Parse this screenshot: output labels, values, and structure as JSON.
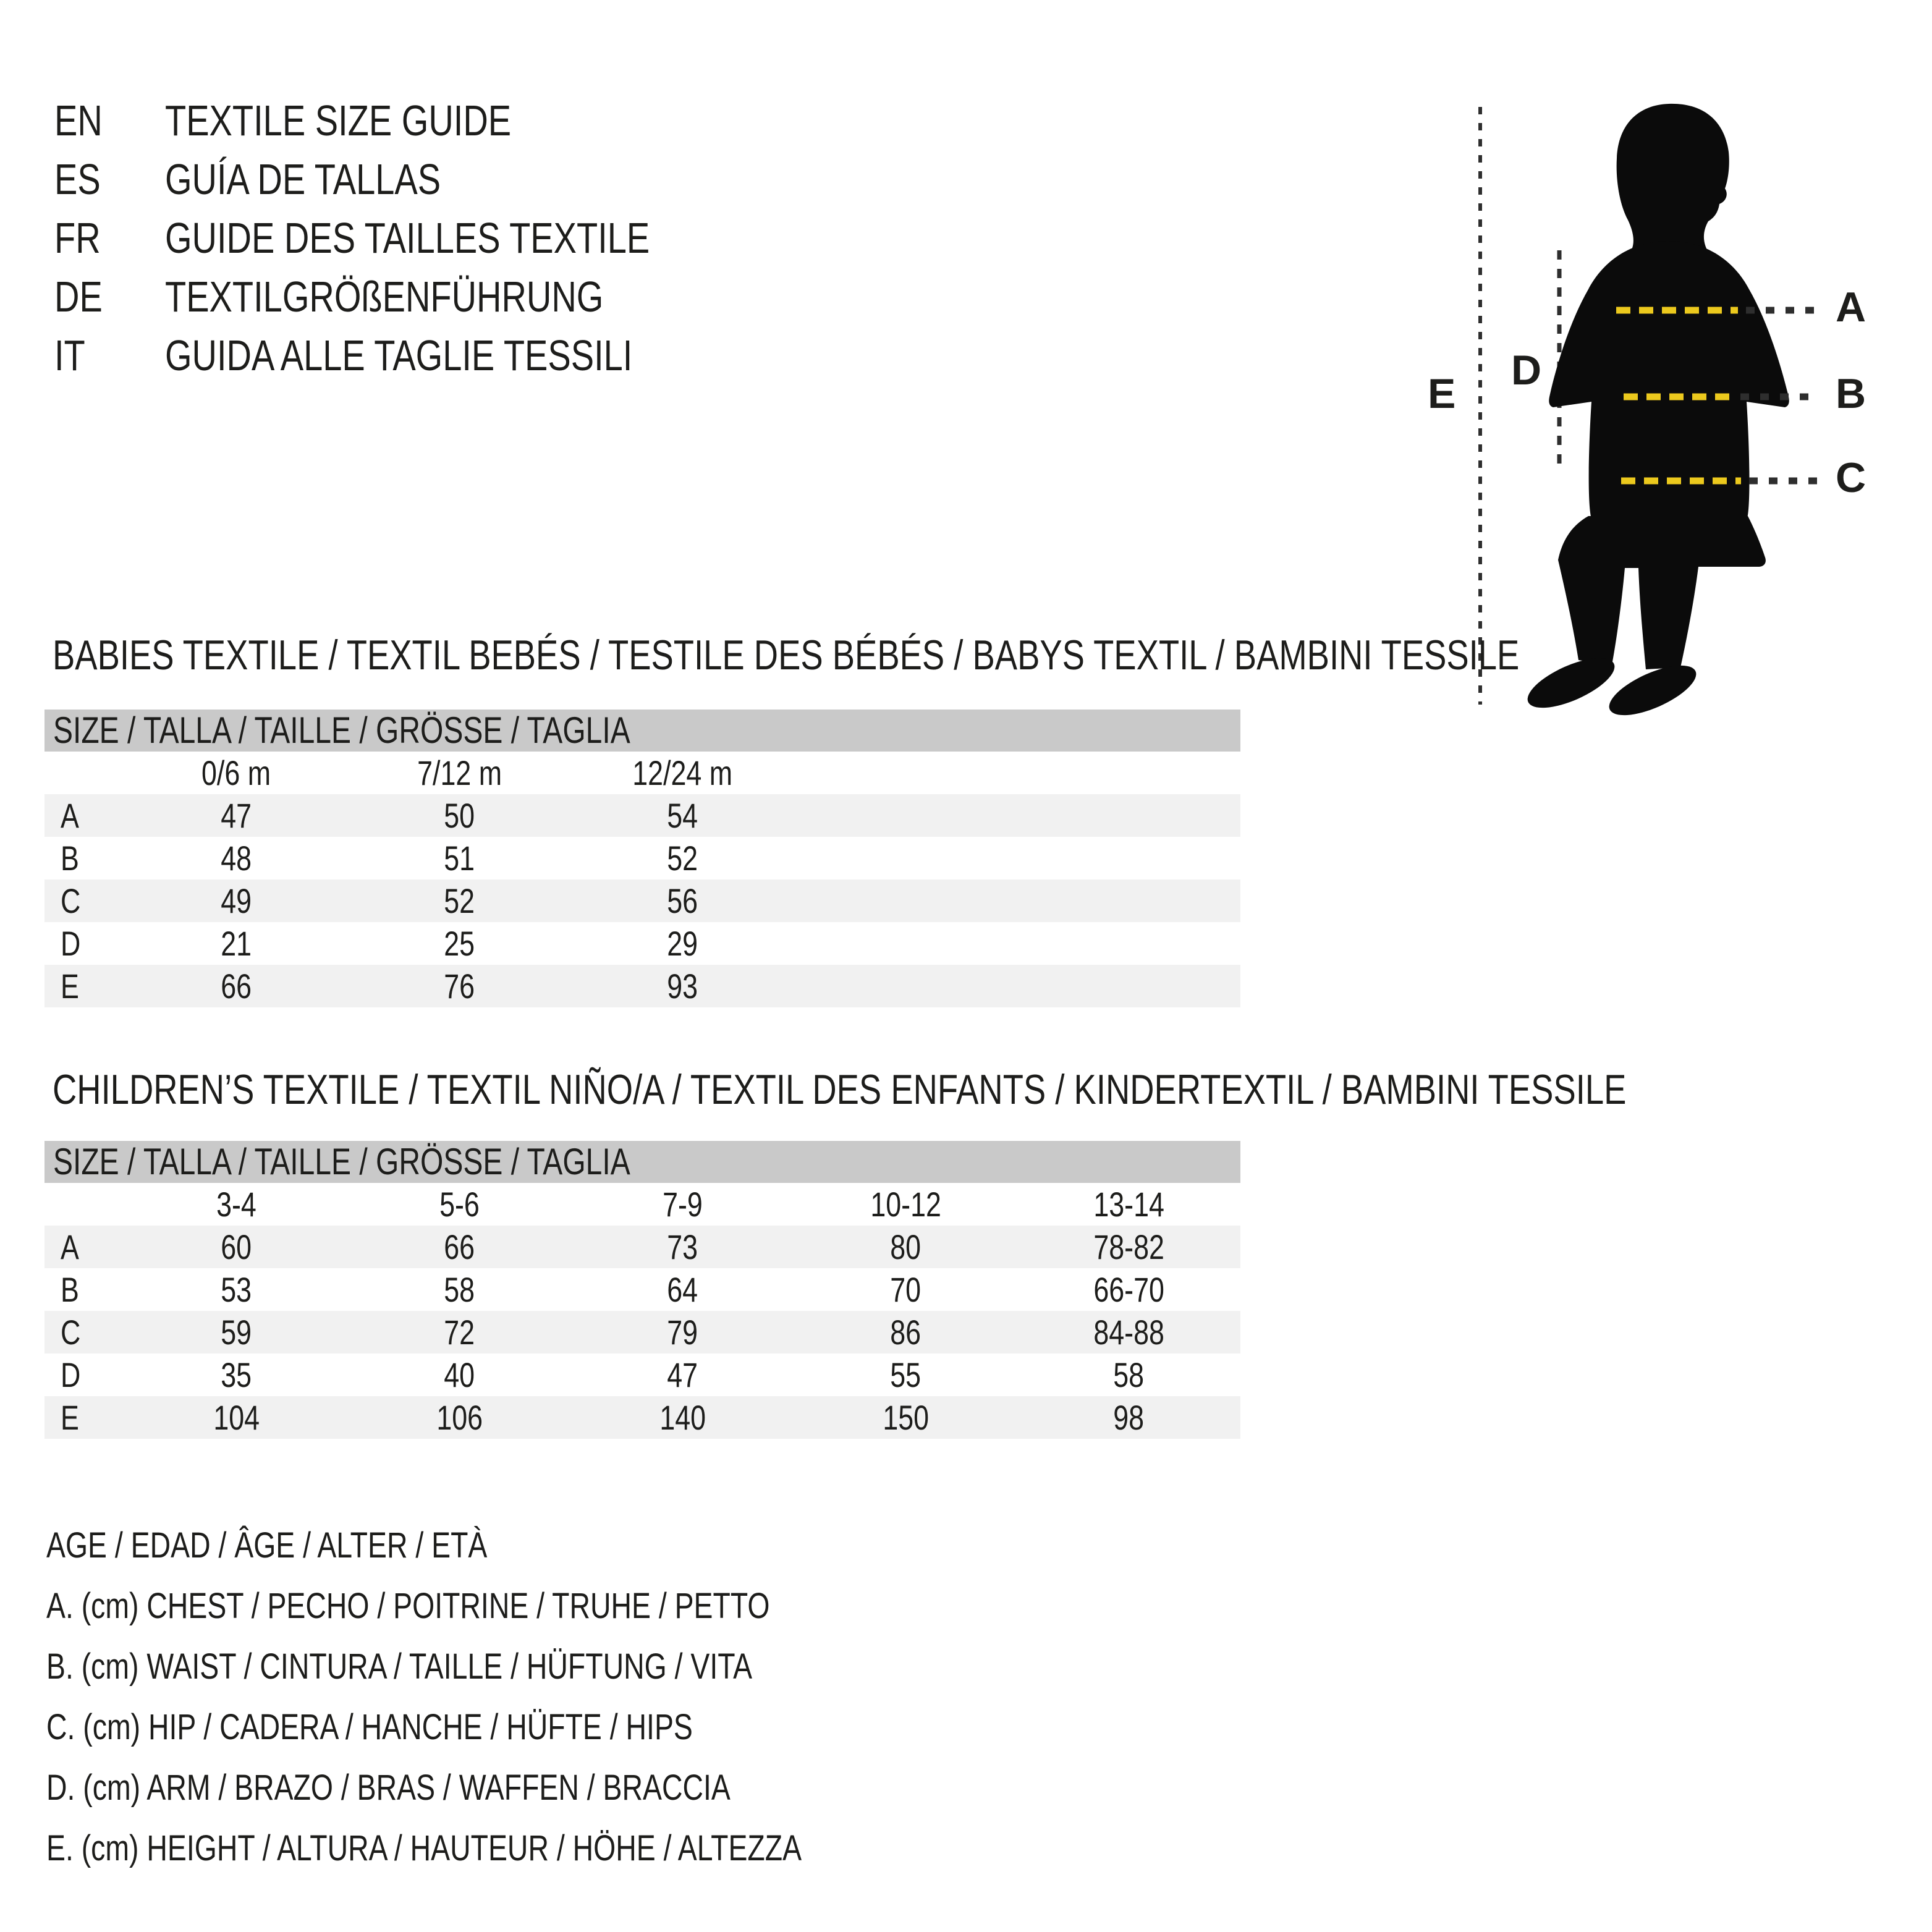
{
  "header": {
    "languages": [
      {
        "code": "EN",
        "title": "TEXTILE SIZE GUIDE"
      },
      {
        "code": "ES",
        "title": "GUÍA DE TALLAS"
      },
      {
        "code": "FR",
        "title": "GUIDE DES TAILLES TEXTILE"
      },
      {
        "code": "DE",
        "title": "TEXTILGRÖßENFÜHRUNG"
      },
      {
        "code": "IT",
        "title": "GUIDA ALLE TAGLIE TESSILI"
      }
    ]
  },
  "figure": {
    "labels": {
      "a": "A",
      "b": "B",
      "c": "C",
      "d": "D",
      "e": "E"
    },
    "accent_color": "#ecc91d",
    "silhouette_color": "#0b0b0b",
    "dash_color": "#2e2e2e"
  },
  "babies": {
    "heading": "BABIES TEXTILE / TEXTIL BEBÉS / TESTILE DES BÉBÉS / BABYS TEXTIL / BAMBINI TESSILE",
    "size_header": "SIZE / TALLA / TAILLE / GRÖSSE / TAGLIA",
    "columns": [
      "0/6 m",
      "7/12 m",
      "12/24 m"
    ],
    "rows": [
      {
        "label": "A",
        "values": [
          "47",
          "50",
          "54"
        ]
      },
      {
        "label": "B",
        "values": [
          "48",
          "51",
          "52"
        ]
      },
      {
        "label": "C",
        "values": [
          "49",
          "52",
          "56"
        ]
      },
      {
        "label": "D",
        "values": [
          "21",
          "25",
          "29"
        ]
      },
      {
        "label": "E",
        "values": [
          "66",
          "76",
          "93"
        ]
      }
    ]
  },
  "children": {
    "heading": "CHILDREN’S TEXTILE / TEXTIL NIÑO/A / TEXTIL DES ENFANTS / KINDERTEXTIL / BAMBINI TESSILE",
    "size_header": "SIZE / TALLA / TAILLE / GRÖSSE / TAGLIA",
    "columns": [
      "3-4",
      "5-6",
      "7-9",
      "10-12",
      "13-14"
    ],
    "rows": [
      {
        "label": "A",
        "values": [
          "60",
          "66",
          "73",
          "80",
          "78-82"
        ]
      },
      {
        "label": "B",
        "values": [
          "53",
          "58",
          "64",
          "70",
          "66-70"
        ]
      },
      {
        "label": "C",
        "values": [
          "59",
          "72",
          "79",
          "86",
          "84-88"
        ]
      },
      {
        "label": "D",
        "values": [
          "35",
          "40",
          "47",
          "55",
          "58"
        ]
      },
      {
        "label": "E",
        "values": [
          "104",
          "106",
          "140",
          "150",
          "98"
        ]
      }
    ]
  },
  "legend": {
    "lines": [
      "AGE / EDAD / ÂGE / ALTER / ETÀ",
      "A. (cm) CHEST / PECHO / POITRINE / TRUHE / PETTO",
      "B. (cm) WAIST / CINTURA / TAILLE / HÜFTUNG / VITA",
      "C. (cm) HIP / CADERA / HANCHE / HÜFTE / HIPS",
      "D. (cm) ARM / BRAZO / BRAS / WAFFEN / BRACCIA",
      "E. (cm) HEIGHT / ALTURA / HAUTEUR / HÖHE / ALTEZZA"
    ]
  }
}
